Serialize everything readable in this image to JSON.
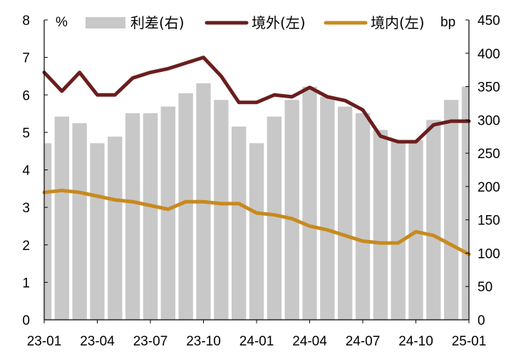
{
  "chart_data": {
    "type": "line",
    "title": "",
    "left_axis": {
      "unit": "%",
      "ylim": [
        0,
        8
      ],
      "ticks": [
        0,
        1,
        2,
        3,
        4,
        5,
        6,
        7,
        8
      ]
    },
    "right_axis": {
      "unit": "bp",
      "ylim": [
        0,
        450
      ],
      "ticks": [
        0,
        50,
        100,
        150,
        200,
        250,
        300,
        350,
        400,
        450
      ]
    },
    "x_axis": {
      "range": [
        "2023-01",
        "2025-01"
      ],
      "ticks": [
        "23-01",
        "23-04",
        "23-07",
        "23-10",
        "24-01",
        "24-04",
        "24-07",
        "24-10",
        "25-01"
      ]
    },
    "grid": false,
    "legend_position": "top",
    "series": [
      {
        "name": "利差(右)",
        "kind": "bar",
        "axis": "right",
        "color": "#c8c8c8",
        "x": [
          "2023-01",
          "2023-02",
          "2023-03",
          "2023-04",
          "2023-05",
          "2023-06",
          "2023-07",
          "2023-08",
          "2023-09",
          "2023-10",
          "2023-11",
          "2023-12",
          "2024-01",
          "2024-02",
          "2024-03",
          "2024-04",
          "2024-05",
          "2024-06",
          "2024-07",
          "2024-08",
          "2024-09",
          "2024-10",
          "2024-11",
          "2024-12",
          "2025-01"
        ],
        "values": [
          265,
          305,
          295,
          265,
          275,
          310,
          310,
          320,
          340,
          355,
          330,
          290,
          265,
          305,
          330,
          350,
          335,
          320,
          310,
          285,
          270,
          270,
          300,
          330,
          350
        ]
      },
      {
        "name": "境外(左)",
        "kind": "line",
        "axis": "left",
        "color": "#6b1e1e",
        "x": [
          "2023-01",
          "2023-02",
          "2023-03",
          "2023-04",
          "2023-05",
          "2023-06",
          "2023-07",
          "2023-08",
          "2023-09",
          "2023-10",
          "2023-11",
          "2023-12",
          "2024-01",
          "2024-02",
          "2024-03",
          "2024-04",
          "2024-05",
          "2024-06",
          "2024-07",
          "2024-08",
          "2024-09",
          "2024-10",
          "2024-11",
          "2024-12",
          "2025-01"
        ],
        "values": [
          6.6,
          6.1,
          6.6,
          6.0,
          6.0,
          6.45,
          6.6,
          6.7,
          6.85,
          7.0,
          6.5,
          5.8,
          5.8,
          6.0,
          5.95,
          6.2,
          5.95,
          5.85,
          5.6,
          4.9,
          4.75,
          4.75,
          5.2,
          5.3,
          5.3
        ]
      },
      {
        "name": "境内(左)",
        "kind": "line",
        "axis": "left",
        "color": "#c88a1e",
        "x": [
          "2023-01",
          "2023-02",
          "2023-03",
          "2023-04",
          "2023-05",
          "2023-06",
          "2023-07",
          "2023-08",
          "2023-09",
          "2023-10",
          "2023-11",
          "2023-12",
          "2024-01",
          "2024-02",
          "2024-03",
          "2024-04",
          "2024-05",
          "2024-06",
          "2024-07",
          "2024-08",
          "2024-09",
          "2024-10",
          "2024-11",
          "2024-12",
          "2025-01"
        ],
        "values": [
          3.4,
          3.45,
          3.4,
          3.3,
          3.2,
          3.15,
          3.05,
          2.95,
          3.15,
          3.15,
          3.1,
          3.1,
          2.85,
          2.8,
          2.7,
          2.5,
          2.4,
          2.25,
          2.1,
          2.05,
          2.05,
          2.35,
          2.25,
          2.0,
          1.75
        ]
      }
    ]
  }
}
